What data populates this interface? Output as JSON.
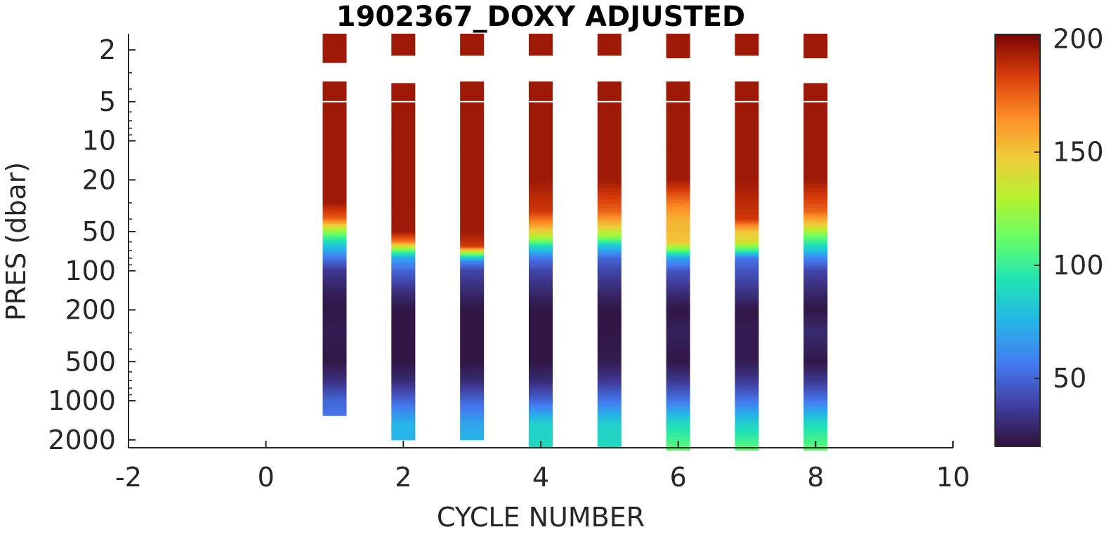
{
  "chart_data": {
    "type": "heatmap",
    "title": "1902367_DOXY ADJUSTED",
    "xlabel": "CYCLE NUMBER",
    "ylabel": "PRES (dbar)",
    "xlim": [
      -2,
      10
    ],
    "xticks": [
      "-2",
      "0",
      "2",
      "4",
      "6",
      "8",
      "10"
    ],
    "yscale": "log",
    "y_reversed": true,
    "ylim": [
      1.5,
      2300
    ],
    "yticks": [
      "2",
      "5",
      "10",
      "20",
      "50",
      "100",
      "200",
      "500",
      "1000",
      "2000"
    ],
    "colorbar": {
      "range": [
        20,
        202
      ],
      "ticks": [
        "50",
        "100",
        "150",
        "200"
      ],
      "colormap": "turbo"
    },
    "profiles": [
      {
        "cycle": 1,
        "pres": [
          1.5,
          2.5,
          3.5,
          5,
          10,
          30,
          40,
          50,
          60,
          80,
          100,
          150,
          200,
          300,
          500,
          700,
          1000,
          1300
        ],
        "doxy": [
          195,
          null,
          195,
          195,
          195,
          195,
          175,
          120,
          90,
          55,
          35,
          25,
          22,
          24,
          22,
          32,
          50,
          55
        ]
      },
      {
        "cycle": 2,
        "pres": [
          1.5,
          2.2,
          3.6,
          5,
          20,
          50,
          60,
          70,
          80,
          100,
          150,
          200,
          300,
          500,
          700,
          1000,
          1500,
          2000
        ],
        "doxy": [
          195,
          null,
          195,
          195,
          195,
          195,
          170,
          110,
          70,
          50,
          30,
          22,
          22,
          22,
          30,
          50,
          75,
          75
        ]
      },
      {
        "cycle": 3,
        "pres": [
          1.5,
          2.2,
          3.5,
          5,
          20,
          50,
          65,
          75,
          85,
          100,
          150,
          200,
          300,
          500,
          700,
          1000,
          1500,
          2000
        ],
        "doxy": [
          195,
          null,
          195,
          195,
          195,
          195,
          185,
          110,
          60,
          40,
          28,
          22,
          22,
          22,
          30,
          50,
          70,
          75
        ]
      },
      {
        "cycle": 4,
        "pres": [
          1.5,
          2.2,
          3.5,
          5,
          20,
          35,
          45,
          55,
          65,
          80,
          100,
          150,
          200,
          300,
          500,
          700,
          1000,
          1500,
          2300
        ],
        "doxy": [
          195,
          null,
          195,
          195,
          195,
          185,
          160,
          130,
          90,
          55,
          40,
          28,
          22,
          22,
          22,
          30,
          50,
          85,
          90
        ]
      },
      {
        "cycle": 5,
        "pres": [
          1.5,
          2.2,
          3.5,
          5,
          20,
          35,
          45,
          55,
          65,
          80,
          100,
          150,
          200,
          300,
          500,
          700,
          1000,
          1500,
          2300
        ],
        "doxy": [
          195,
          null,
          195,
          195,
          195,
          175,
          150,
          120,
          80,
          50,
          40,
          28,
          22,
          22,
          24,
          35,
          55,
          85,
          90
        ]
      },
      {
        "cycle": 6,
        "pres": [
          1.5,
          2.3,
          3.5,
          5,
          20,
          30,
          40,
          60,
          70,
          80,
          100,
          150,
          200,
          300,
          500,
          700,
          1000,
          1500,
          2400
        ],
        "doxy": [
          195,
          null,
          195,
          195,
          195,
          170,
          155,
          150,
          110,
          70,
          45,
          30,
          22,
          26,
          22,
          35,
          55,
          90,
          110
        ]
      },
      {
        "cycle": 7,
        "pres": [
          1.5,
          2.2,
          3.5,
          5,
          20,
          40,
          50,
          60,
          70,
          80,
          100,
          150,
          200,
          300,
          500,
          700,
          1000,
          1500,
          2400
        ],
        "doxy": [
          195,
          null,
          195,
          195,
          195,
          185,
          150,
          140,
          100,
          55,
          45,
          32,
          22,
          24,
          24,
          35,
          55,
          85,
          110
        ]
      },
      {
        "cycle": 8,
        "pres": [
          1.5,
          2.3,
          3.6,
          5,
          20,
          35,
          45,
          55,
          65,
          80,
          100,
          150,
          200,
          300,
          500,
          700,
          1000,
          1500,
          2400
        ],
        "doxy": [
          195,
          null,
          195,
          195,
          195,
          175,
          145,
          110,
          90,
          60,
          40,
          28,
          22,
          30,
          22,
          35,
          55,
          90,
          110
        ]
      }
    ]
  }
}
